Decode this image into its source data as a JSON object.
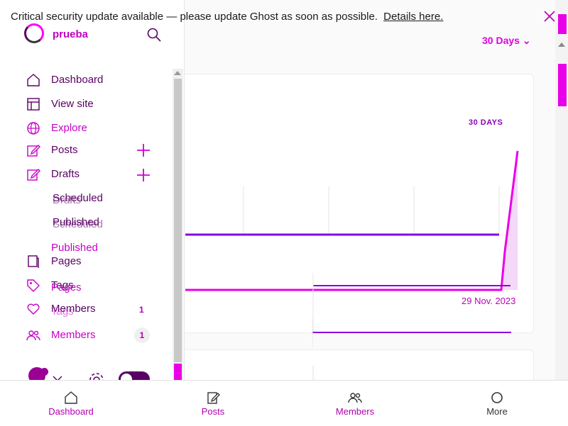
{
  "banner": {
    "message": "Critical security update available — please update Ghost as soon as possible.",
    "link": "Details here."
  },
  "site": {
    "name": "prueba"
  },
  "nav": {
    "dashboard": "Dashboard",
    "view_site": "View site",
    "explore": "Explore",
    "posts": "Posts",
    "drafts": "Drafts",
    "scheduled": "Scheduled",
    "published": "Published",
    "pages": "Pages",
    "tags": "Tags",
    "members": "Members",
    "members_count": "1"
  },
  "main": {
    "range": "30 Days",
    "card_range": "30 DAYS",
    "chart_date": "29 Nov. 2023"
  },
  "tabbar": {
    "dashboard": "Dashboard",
    "posts": "Posts",
    "members": "Members",
    "more": "More"
  },
  "colors": {
    "accent": "#e000e0",
    "purple": "#8a00e0",
    "dark_purple": "#5a0064"
  }
}
